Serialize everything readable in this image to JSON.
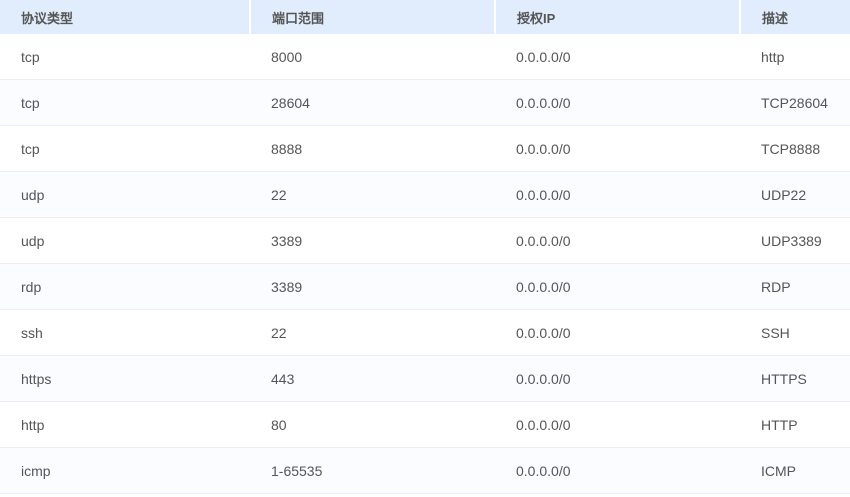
{
  "table": {
    "headers": [
      "协议类型",
      "端口范围",
      "授权IP",
      "描述"
    ],
    "rows": [
      [
        "tcp",
        "8000",
        "0.0.0.0/0",
        "http"
      ],
      [
        "tcp",
        "28604",
        "0.0.0.0/0",
        "TCP28604"
      ],
      [
        "tcp",
        "8888",
        "0.0.0.0/0",
        "TCP8888"
      ],
      [
        "udp",
        "22",
        "0.0.0.0/0",
        "UDP22"
      ],
      [
        "udp",
        "3389",
        "0.0.0.0/0",
        "UDP3389"
      ],
      [
        "rdp",
        "3389",
        "0.0.0.0/0",
        "RDP"
      ],
      [
        "ssh",
        "22",
        "0.0.0.0/0",
        "SSH"
      ],
      [
        "https",
        "443",
        "0.0.0.0/0",
        "HTTPS"
      ],
      [
        "http",
        "80",
        "0.0.0.0/0",
        "HTTP"
      ],
      [
        "icmp",
        "1-65535",
        "0.0.0.0/0",
        "ICMP"
      ]
    ]
  }
}
